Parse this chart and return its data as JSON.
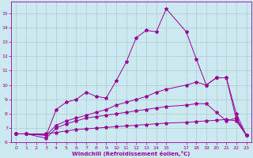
{
  "xlabel": "Windchill (Refroidissement éolien,°C)",
  "background_color": "#cce8f0",
  "plot_bg": "#cce8f0",
  "line_color": "#990099",
  "grid_color": "#aacccc",
  "xlim": [
    -0.5,
    23.5
  ],
  "ylim": [
    6.0,
    15.8
  ],
  "yticks": [
    6,
    7,
    8,
    9,
    10,
    11,
    12,
    13,
    14,
    15
  ],
  "xticks": [
    0,
    1,
    2,
    3,
    4,
    5,
    6,
    7,
    8,
    9,
    10,
    11,
    12,
    13,
    14,
    15,
    17,
    18,
    19,
    20,
    21,
    22,
    23
  ],
  "series": [
    {
      "x": [
        0,
        1,
        3,
        4,
        5,
        6,
        7,
        8,
        9,
        10,
        11,
        12,
        13,
        14,
        15,
        17,
        18,
        19,
        20,
        21,
        22,
        23
      ],
      "y": [
        6.6,
        6.6,
        6.5,
        8.3,
        8.8,
        9.0,
        9.5,
        9.2,
        9.1,
        10.3,
        11.6,
        13.3,
        13.8,
        13.7,
        15.3,
        13.7,
        11.8,
        10.0,
        10.5,
        10.5,
        8.0,
        6.5
      ]
    },
    {
      "x": [
        0,
        1,
        3,
        4,
        5,
        6,
        7,
        8,
        9,
        10,
        11,
        12,
        13,
        14,
        15,
        17,
        18,
        19,
        20,
        21,
        22,
        23
      ],
      "y": [
        6.6,
        6.6,
        6.5,
        7.2,
        7.5,
        7.7,
        7.9,
        8.1,
        8.3,
        8.6,
        8.8,
        9.0,
        9.2,
        9.5,
        9.7,
        10.0,
        10.2,
        10.0,
        10.5,
        10.5,
        7.6,
        6.5
      ]
    },
    {
      "x": [
        0,
        1,
        3,
        4,
        5,
        6,
        7,
        8,
        9,
        10,
        11,
        12,
        13,
        14,
        15,
        17,
        18,
        19,
        20,
        21,
        22,
        23
      ],
      "y": [
        6.6,
        6.6,
        6.6,
        6.7,
        6.8,
        6.9,
        6.95,
        7.0,
        7.05,
        7.1,
        7.15,
        7.2,
        7.25,
        7.3,
        7.35,
        7.4,
        7.45,
        7.5,
        7.55,
        7.6,
        7.5,
        6.5
      ]
    },
    {
      "x": [
        0,
        1,
        3,
        4,
        5,
        6,
        7,
        8,
        9,
        10,
        11,
        12,
        13,
        14,
        15,
        17,
        18,
        19,
        20,
        21,
        22,
        23
      ],
      "y": [
        6.6,
        6.6,
        6.3,
        7.0,
        7.3,
        7.5,
        7.7,
        7.8,
        7.9,
        8.0,
        8.1,
        8.2,
        8.3,
        8.4,
        8.5,
        8.6,
        8.7,
        8.7,
        8.1,
        7.5,
        7.7,
        6.5
      ]
    }
  ]
}
